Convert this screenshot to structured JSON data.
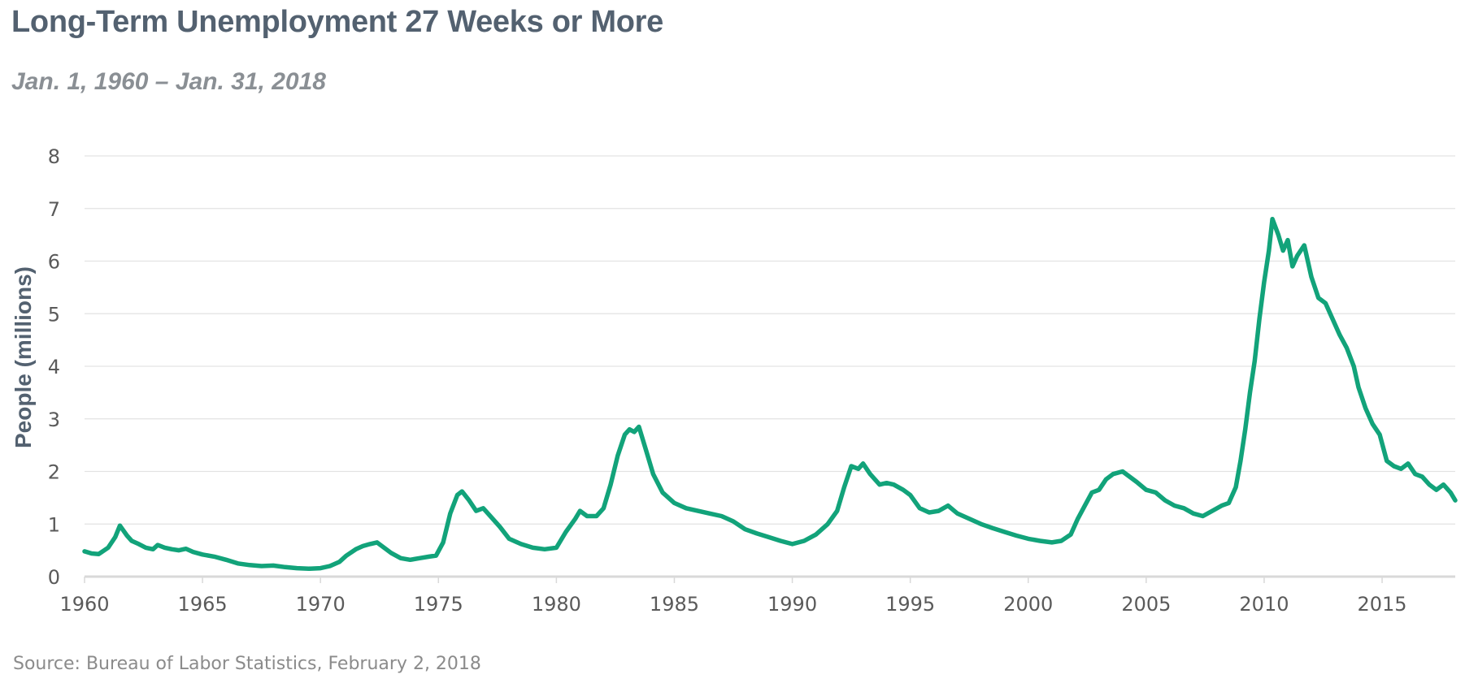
{
  "header": {
    "title": "Long-Term Unemployment 27 Weeks or More",
    "subtitle": "Jan. 1, 1960 – Jan. 31, 2018"
  },
  "footer": {
    "source": "Source: Bureau of Labor Statistics,  February 2, 2018"
  },
  "colors": {
    "line": "#12a37a",
    "grid": "#e3e3e3",
    "axis": "#d9d9d9",
    "title": "#536170",
    "subtitle": "#8a8f94"
  },
  "chart_data": {
    "type": "line",
    "title": "Long-Term Unemployment 27 Weeks or More",
    "subtitle": "Jan. 1, 1960 – Jan. 31, 2018",
    "xlabel": "",
    "ylabel": "People (millions)",
    "xlim": [
      1960,
      2018.1
    ],
    "ylim": [
      0,
      8
    ],
    "x_ticks": [
      1960,
      1965,
      1970,
      1975,
      1980,
      1985,
      1990,
      1995,
      2000,
      2005,
      2010,
      2015
    ],
    "y_ticks": [
      0,
      1,
      2,
      3,
      4,
      5,
      6,
      7,
      8
    ],
    "grid": "horizontal",
    "legend": "none",
    "series": [
      {
        "x": [
          1960.0,
          1960.3,
          1960.6,
          1961.0,
          1961.3,
          1961.5,
          1961.8,
          1962.0,
          1962.3,
          1962.6,
          1962.9,
          1963.1,
          1963.4,
          1963.7,
          1964.0,
          1964.3,
          1964.6,
          1965.0,
          1965.5,
          1966.0,
          1966.5,
          1967.0,
          1967.5,
          1968.0,
          1968.5,
          1969.0,
          1969.5,
          1970.0,
          1970.4,
          1970.8,
          1971.1,
          1971.5,
          1971.8,
          1972.1,
          1972.4,
          1972.7,
          1973.0,
          1973.4,
          1973.8,
          1974.2,
          1974.6,
          1974.9,
          1975.2,
          1975.5,
          1975.8,
          1976.0,
          1976.3,
          1976.6,
          1976.9,
          1977.2,
          1977.6,
          1978.0,
          1978.5,
          1979.0,
          1979.5,
          1980.0,
          1980.4,
          1980.8,
          1981.0,
          1981.3,
          1981.7,
          1982.0,
          1982.3,
          1982.6,
          1982.9,
          1983.1,
          1983.3,
          1983.5,
          1983.8,
          1984.1,
          1984.5,
          1985.0,
          1985.5,
          1986.0,
          1986.5,
          1987.0,
          1987.5,
          1988.0,
          1988.5,
          1989.0,
          1989.5,
          1990.0,
          1990.5,
          1991.0,
          1991.5,
          1991.9,
          1992.2,
          1992.5,
          1992.8,
          1993.0,
          1993.3,
          1993.7,
          1994.0,
          1994.3,
          1994.7,
          1995.0,
          1995.4,
          1995.8,
          1996.2,
          1996.6,
          1997.0,
          1997.5,
          1998.0,
          1998.5,
          1999.0,
          1999.5,
          2000.0,
          2000.5,
          2001.0,
          2001.4,
          2001.8,
          2002.1,
          2002.4,
          2002.7,
          2003.0,
          2003.3,
          2003.6,
          2004.0,
          2004.3,
          2004.6,
          2005.0,
          2005.4,
          2005.8,
          2006.2,
          2006.6,
          2007.0,
          2007.4,
          2007.8,
          2008.2,
          2008.5,
          2008.8,
          2009.0,
          2009.2,
          2009.4,
          2009.6,
          2009.8,
          2010.0,
          2010.2,
          2010.35,
          2010.6,
          2010.8,
          2011.0,
          2011.2,
          2011.4,
          2011.7,
          2012.0,
          2012.3,
          2012.6,
          2012.9,
          2013.2,
          2013.5,
          2013.8,
          2014.0,
          2014.3,
          2014.6,
          2014.9,
          2015.2,
          2015.5,
          2015.8,
          2016.1,
          2016.4,
          2016.7,
          2017.0,
          2017.3,
          2017.6,
          2017.9,
          2018.1
        ],
        "y": [
          0.48,
          0.44,
          0.43,
          0.55,
          0.75,
          0.97,
          0.78,
          0.68,
          0.62,
          0.55,
          0.52,
          0.6,
          0.55,
          0.52,
          0.5,
          0.53,
          0.47,
          0.42,
          0.38,
          0.32,
          0.25,
          0.22,
          0.2,
          0.21,
          0.18,
          0.16,
          0.15,
          0.16,
          0.2,
          0.28,
          0.4,
          0.52,
          0.58,
          0.62,
          0.65,
          0.55,
          0.45,
          0.35,
          0.32,
          0.35,
          0.38,
          0.4,
          0.65,
          1.2,
          1.55,
          1.62,
          1.45,
          1.25,
          1.3,
          1.15,
          0.95,
          0.72,
          0.62,
          0.55,
          0.52,
          0.55,
          0.85,
          1.1,
          1.25,
          1.15,
          1.15,
          1.3,
          1.75,
          2.3,
          2.7,
          2.8,
          2.75,
          2.85,
          2.4,
          1.95,
          1.6,
          1.4,
          1.3,
          1.25,
          1.2,
          1.15,
          1.05,
          0.9,
          0.82,
          0.75,
          0.68,
          0.62,
          0.68,
          0.8,
          1.0,
          1.25,
          1.7,
          2.1,
          2.05,
          2.15,
          1.95,
          1.75,
          1.78,
          1.75,
          1.65,
          1.55,
          1.3,
          1.22,
          1.25,
          1.35,
          1.2,
          1.1,
          1.0,
          0.92,
          0.85,
          0.78,
          0.72,
          0.68,
          0.65,
          0.68,
          0.8,
          1.1,
          1.35,
          1.6,
          1.65,
          1.85,
          1.95,
          2.0,
          1.9,
          1.8,
          1.65,
          1.6,
          1.45,
          1.35,
          1.3,
          1.2,
          1.15,
          1.25,
          1.35,
          1.4,
          1.7,
          2.2,
          2.8,
          3.5,
          4.1,
          4.9,
          5.6,
          6.2,
          6.8,
          6.5,
          6.2,
          6.4,
          5.9,
          6.1,
          6.3,
          5.7,
          5.3,
          5.2,
          4.9,
          4.6,
          4.35,
          4.0,
          3.6,
          3.2,
          2.9,
          2.7,
          2.2,
          2.1,
          2.05,
          2.15,
          1.95,
          1.9,
          1.75,
          1.65,
          1.75,
          1.6,
          1.45
        ]
      }
    ]
  }
}
